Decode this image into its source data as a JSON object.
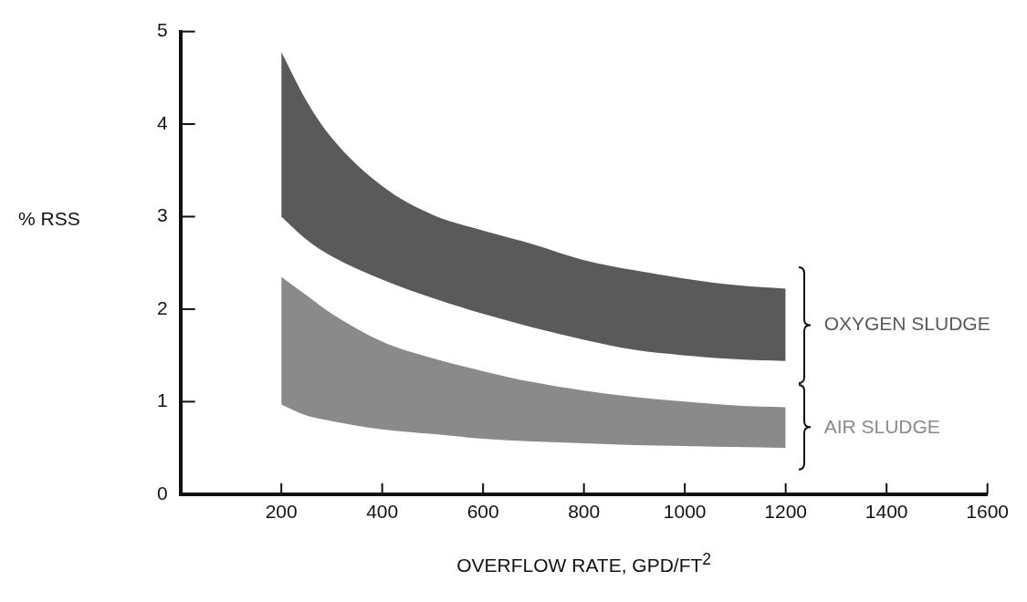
{
  "chart_data": {
    "type": "area",
    "xlabel": "OVERFLOW RATE, GPD/FT$^{2}$",
    "ylabel": "% RSS",
    "x": [
      200,
      250,
      300,
      400,
      500,
      600,
      700,
      800,
      900,
      1000,
      1100,
      1200
    ],
    "series": [
      {
        "name": "OXYGEN SLUDGE",
        "color": "#5a5a5a",
        "values": [
          null,
          null,
          null,
          null,
          null,
          null,
          null,
          null,
          null,
          null,
          null,
          null
        ],
        "upper": [
          4.78,
          4.25,
          3.85,
          3.33,
          3.02,
          2.85,
          2.7,
          2.53,
          2.42,
          2.33,
          2.26,
          2.22
        ],
        "lower": [
          3.0,
          2.75,
          2.57,
          2.32,
          2.12,
          1.95,
          1.8,
          1.67,
          1.56,
          1.5,
          1.46,
          1.44
        ]
      },
      {
        "name": "AIR SLUDGE",
        "color": "#8a8a8a",
        "values": [
          null,
          null,
          null,
          null,
          null,
          null,
          null,
          null,
          null,
          null,
          null,
          null
        ],
        "upper": [
          2.35,
          2.15,
          1.95,
          1.65,
          1.47,
          1.33,
          1.21,
          1.12,
          1.05,
          1.0,
          0.96,
          0.94
        ],
        "lower": [
          0.97,
          0.85,
          0.79,
          0.7,
          0.65,
          0.6,
          0.57,
          0.55,
          0.53,
          0.52,
          0.51,
          0.5
        ]
      }
    ],
    "xlim": [
      0,
      1600
    ],
    "xticks": [
      200,
      400,
      600,
      800,
      1000,
      1200,
      1400,
      1600
    ],
    "ylim": [
      0,
      5
    ],
    "yticks": [
      0,
      1,
      2,
      3,
      4,
      5
    ],
    "grid": false,
    "legend": false
  }
}
